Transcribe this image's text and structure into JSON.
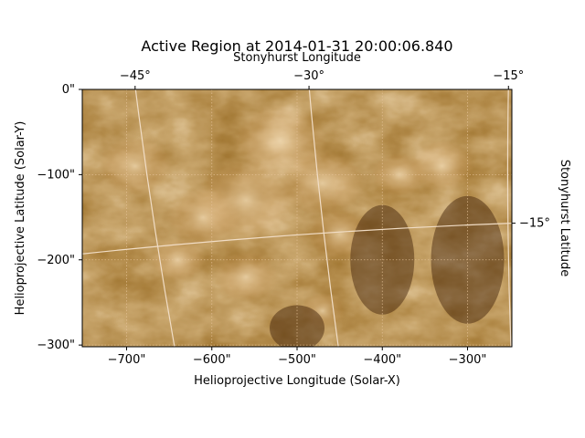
{
  "chart_data": {
    "type": "heatmap",
    "title": "Active Region at 2014-01-31 20:00:06.840",
    "xlabel": "Helioprojective Longitude (Solar-X)",
    "ylabel": "Helioprojective Latitude (Solar-Y)",
    "top_xlabel": "Stonyhurst Longitude",
    "right_ylabel": "Stonyhurst Latitude",
    "xlim": [
      -752,
      -248
    ],
    "ylim": [
      -302,
      0
    ],
    "x_ticks": [
      {
        "value": -700,
        "label": "−700\""
      },
      {
        "value": -600,
        "label": "−600\""
      },
      {
        "value": -500,
        "label": "−500\""
      },
      {
        "value": -400,
        "label": "−400\""
      },
      {
        "value": -300,
        "label": "−300\""
      }
    ],
    "y_ticks": [
      {
        "value": 0,
        "label": "0\""
      },
      {
        "value": -100,
        "label": "−100\""
      },
      {
        "value": -200,
        "label": "−200\""
      },
      {
        "value": -300,
        "label": "−300\""
      }
    ],
    "lon_lines": [
      {
        "value": -45,
        "label": "−45°",
        "top_x": -690,
        "bottom_x": -643
      },
      {
        "value": -30,
        "label": "−30°",
        "top_x": -486,
        "bottom_x": -451
      },
      {
        "value": -15,
        "label": "−15°",
        "top_x": -252,
        "bottom_x": -249
      }
    ],
    "lat_lines": [
      {
        "value": -15,
        "label": "−15°",
        "left_y": -193,
        "right_y": -157
      }
    ],
    "grid": true,
    "colormap": [
      "#2b0f00",
      "#5a2a05",
      "#7a4212",
      "#9b6226",
      "#c7914f",
      "#f0d8b0"
    ]
  }
}
